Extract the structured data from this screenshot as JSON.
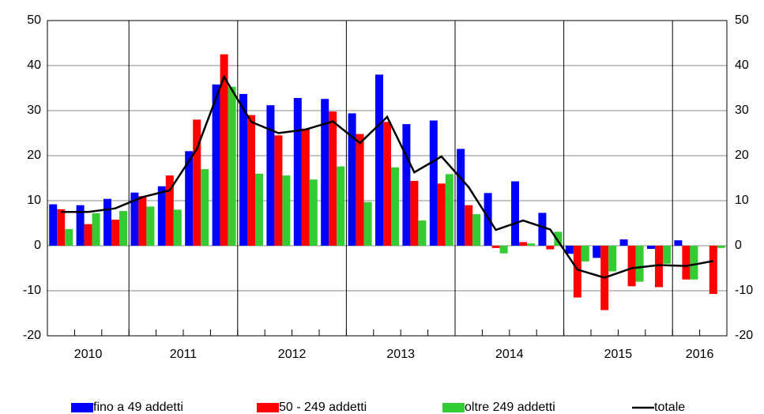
{
  "chart_data": {
    "type": "bar",
    "categories": [
      "2010",
      "2010",
      "2010",
      "2011",
      "2011",
      "2011",
      "2011",
      "2012",
      "2012",
      "2012",
      "2012",
      "2013",
      "2013",
      "2013",
      "2013",
      "2014",
      "2014",
      "2014",
      "2014",
      "2015",
      "2015",
      "2015",
      "2015",
      "2016",
      "2016"
    ],
    "series": [
      {
        "name": "fino a 49 addetti",
        "color": "#0000ff",
        "values": [
          9.2,
          9.0,
          10.4,
          11.8,
          13.2,
          21,
          35.8,
          33.7,
          31.2,
          32.8,
          32.6,
          29.4,
          38,
          27,
          27.8,
          21.5,
          11.7,
          14.3,
          7.3,
          -1.8,
          -2.7,
          1.4,
          -0.7,
          1.2,
          0
        ]
      },
      {
        "name": "50 - 249 addetti",
        "color": "#ff0000",
        "values": [
          8.1,
          4.8,
          5.8,
          11.0,
          15.6,
          28,
          42.5,
          29,
          24.5,
          26,
          29.8,
          24.8,
          27.5,
          14.4,
          13.8,
          9,
          -0.5,
          0.8,
          -0.8,
          -11.5,
          -14.3,
          -9,
          -9.2,
          -7.5,
          -10.7
        ]
      },
      {
        "name": "oltre 249 addetti",
        "color": "#33cc33",
        "values": [
          3.7,
          7.2,
          7.7,
          8.7,
          8.0,
          17,
          35.3,
          16,
          15.6,
          14.7,
          17.6,
          9.7,
          17.4,
          5.6,
          15.9,
          7.0,
          -1.7,
          0.5,
          3.1,
          -3.5,
          -5.7,
          -8,
          -4,
          -7.5,
          -0.5
        ]
      },
      {
        "name": "totale",
        "type": "line",
        "color": "#000000",
        "values": [
          7.5,
          7.5,
          8.3,
          10.8,
          12.3,
          21.5,
          37.5,
          27.5,
          25,
          25.8,
          27.6,
          22.8,
          28.6,
          16.3,
          19.8,
          13,
          3.5,
          5.6,
          3.6,
          -5.3,
          -7.1,
          -5,
          -4.3,
          -4.5,
          -3.4
        ]
      }
    ],
    "ylim": [
      -20,
      50
    ],
    "yticks": [
      -20,
      -10,
      0,
      10,
      20,
      30,
      40,
      50
    ],
    "y2lim": [
      -20,
      50
    ],
    "y2ticks": [
      -20,
      -10,
      0,
      10,
      20,
      30,
      40,
      50
    ],
    "grid": true
  }
}
